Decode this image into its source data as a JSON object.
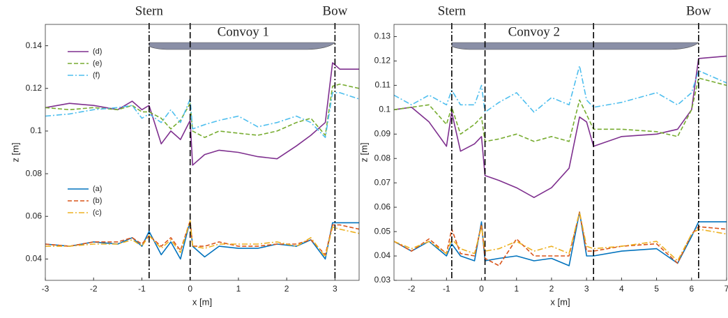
{
  "chart_data": [
    {
      "type": "line",
      "xlabel": "x [m]",
      "ylabel": "z [m]",
      "xlim": [
        -3,
        3.5
      ],
      "xticks": [
        -3,
        -2,
        -1,
        0,
        1,
        2,
        3
      ],
      "ylim": [
        0.03,
        0.15
      ],
      "yticks": [
        0.04,
        0.06,
        0.08,
        0.1,
        0.12,
        0.14
      ],
      "legend": true,
      "dividers": [
        -0.85,
        0,
        3.0
      ],
      "annotations": [
        {
          "text": "Stern",
          "x": -0.85
        },
        {
          "text": "Bow",
          "x": 3.0
        },
        {
          "text": "Convoy 1",
          "x": 1.1
        }
      ],
      "x": [
        -3,
        -2.5,
        -2,
        -1.5,
        -1.2,
        -1,
        -0.85,
        -0.6,
        -0.4,
        -0.2,
        0,
        0.05,
        0.3,
        0.6,
        1,
        1.4,
        1.8,
        2.2,
        2.5,
        2.8,
        2.95,
        3.1,
        3.5
      ],
      "series": [
        {
          "name": "(d)",
          "color": "#7e2f8e",
          "style": "solid",
          "values": [
            0.111,
            0.113,
            0.112,
            0.11,
            0.114,
            0.11,
            0.112,
            0.094,
            0.1,
            0.096,
            0.105,
            0.084,
            0.089,
            0.091,
            0.09,
            0.088,
            0.087,
            0.093,
            0.098,
            0.104,
            0.132,
            0.129,
            0.129
          ]
        },
        {
          "name": "(e)",
          "color": "#77ac30",
          "style": "dashed",
          "values": [
            0.111,
            0.11,
            0.111,
            0.11,
            0.112,
            0.109,
            0.109,
            0.106,
            0.101,
            0.105,
            0.113,
            0.1,
            0.097,
            0.1,
            0.099,
            0.098,
            0.1,
            0.104,
            0.106,
            0.098,
            0.121,
            0.122,
            0.12
          ]
        },
        {
          "name": "(f)",
          "color": "#4dbeee",
          "style": "dashdot",
          "values": [
            0.107,
            0.108,
            0.11,
            0.111,
            0.112,
            0.106,
            0.108,
            0.104,
            0.11,
            0.104,
            0.115,
            0.101,
            0.103,
            0.105,
            0.107,
            0.102,
            0.104,
            0.107,
            0.104,
            0.097,
            0.118,
            0.118,
            0.115
          ]
        },
        {
          "name": "(a)",
          "color": "#0072bd",
          "style": "solid",
          "values": [
            0.047,
            0.046,
            0.048,
            0.047,
            0.05,
            0.046,
            0.053,
            0.042,
            0.048,
            0.04,
            0.058,
            0.046,
            0.041,
            0.046,
            0.045,
            0.045,
            0.047,
            0.046,
            0.049,
            0.04,
            0.057,
            0.057,
            0.057
          ]
        },
        {
          "name": "(b)",
          "color": "#d95319",
          "style": "dashed",
          "values": [
            0.047,
            0.046,
            0.048,
            0.048,
            0.05,
            0.047,
            0.051,
            0.046,
            0.05,
            0.044,
            0.058,
            0.046,
            0.046,
            0.048,
            0.046,
            0.046,
            0.047,
            0.047,
            0.049,
            0.042,
            0.056,
            0.056,
            0.054
          ]
        },
        {
          "name": "(c)",
          "color": "#edb120",
          "style": "dashdot",
          "values": [
            0.046,
            0.046,
            0.047,
            0.047,
            0.049,
            0.046,
            0.051,
            0.045,
            0.049,
            0.043,
            0.058,
            0.046,
            0.045,
            0.047,
            0.047,
            0.047,
            0.048,
            0.046,
            0.05,
            0.041,
            0.055,
            0.054,
            0.052
          ]
        }
      ]
    },
    {
      "type": "line",
      "xlabel": "x [m]",
      "ylabel": "z [m]",
      "xlim": [
        -2.5,
        7
      ],
      "xticks": [
        -2,
        -1,
        0,
        1,
        2,
        3,
        4,
        5,
        6,
        7
      ],
      "ylim": [
        0.03,
        0.135
      ],
      "yticks": [
        0.03,
        0.04,
        0.05,
        0.06,
        0.07,
        0.08,
        0.09,
        0.1,
        0.11,
        0.12,
        0.13
      ],
      "legend": false,
      "dividers": [
        -0.85,
        0.1,
        3.2,
        6.2
      ],
      "annotations": [
        {
          "text": "Stern",
          "x": -0.85
        },
        {
          "text": "Bow",
          "x": 6.2
        },
        {
          "text": "Convoy 2",
          "x": 1.5
        }
      ],
      "x": [
        -2.5,
        -2,
        -1.5,
        -1,
        -0.85,
        -0.6,
        -0.2,
        0,
        0.1,
        0.5,
        1,
        1.5,
        2,
        2.5,
        2.8,
        3,
        3.2,
        4,
        5,
        5.6,
        6,
        6.2,
        7
      ],
      "series": [
        {
          "name": "(d)",
          "color": "#7e2f8e",
          "style": "solid",
          "values": [
            0.1,
            0.101,
            0.095,
            0.085,
            0.099,
            0.083,
            0.086,
            0.089,
            0.073,
            0.071,
            0.068,
            0.064,
            0.068,
            0.076,
            0.097,
            0.095,
            0.085,
            0.089,
            0.09,
            0.092,
            0.1,
            0.121,
            0.122
          ]
        },
        {
          "name": "(e)",
          "color": "#77ac30",
          "style": "dashed",
          "values": [
            0.1,
            0.101,
            0.102,
            0.094,
            0.101,
            0.09,
            0.094,
            0.097,
            0.087,
            0.088,
            0.09,
            0.087,
            0.089,
            0.087,
            0.104,
            0.098,
            0.092,
            0.092,
            0.091,
            0.089,
            0.1,
            0.113,
            0.11
          ]
        },
        {
          "name": "(f)",
          "color": "#4dbeee",
          "style": "dashdot",
          "values": [
            0.106,
            0.102,
            0.106,
            0.102,
            0.108,
            0.102,
            0.102,
            0.11,
            0.099,
            0.103,
            0.107,
            0.099,
            0.105,
            0.102,
            0.118,
            0.104,
            0.101,
            0.103,
            0.107,
            0.102,
            0.107,
            0.116,
            0.111
          ]
        },
        {
          "name": "(a)",
          "color": "#0072bd",
          "style": "solid",
          "values": [
            0.046,
            0.042,
            0.046,
            0.04,
            0.045,
            0.04,
            0.038,
            0.054,
            0.038,
            0.039,
            0.04,
            0.038,
            0.039,
            0.036,
            0.058,
            0.04,
            0.04,
            0.042,
            0.043,
            0.037,
            0.048,
            0.054,
            0.054
          ]
        },
        {
          "name": "(b)",
          "color": "#d95319",
          "style": "dashed",
          "values": [
            0.046,
            0.042,
            0.047,
            0.041,
            0.051,
            0.041,
            0.04,
            0.053,
            0.039,
            0.036,
            0.047,
            0.04,
            0.04,
            0.04,
            0.058,
            0.042,
            0.042,
            0.044,
            0.045,
            0.037,
            0.049,
            0.052,
            0.051
          ]
        },
        {
          "name": "(c)",
          "color": "#edb120",
          "style": "dashdot",
          "values": [
            0.046,
            0.043,
            0.046,
            0.041,
            0.047,
            0.043,
            0.041,
            0.052,
            0.042,
            0.043,
            0.046,
            0.042,
            0.044,
            0.041,
            0.058,
            0.044,
            0.043,
            0.044,
            0.046,
            0.038,
            0.049,
            0.051,
            0.049
          ]
        }
      ]
    }
  ]
}
